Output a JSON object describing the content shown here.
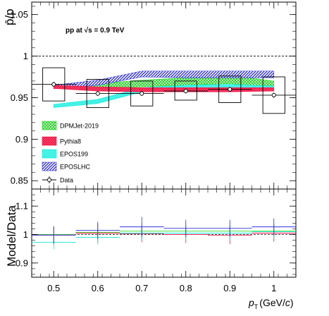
{
  "chart_data": [
    {
      "type": "line",
      "panel": "ratio",
      "ylabel": "p̄/p",
      "ylim": [
        0.84,
        1.065
      ],
      "xlim": [
        0.45,
        1.05
      ],
      "yticks": [
        0.85,
        0.9,
        0.95,
        1,
        1.05
      ],
      "ytick_labels": [
        "0.85",
        "0.9",
        "0.95",
        "1",
        "1.05"
      ],
      "annotation": "pp at √s = 0.9 TeV",
      "reference_line": 1.0,
      "legend_position": "lower-left",
      "data": {
        "name": "Data",
        "x": [
          0.5,
          0.6,
          0.7,
          0.8,
          0.9,
          1.0
        ],
        "y": [
          0.966,
          0.955,
          0.955,
          0.958,
          0.96,
          0.953
        ],
        "xerr_stat": [
          0.05,
          0.05,
          0.05,
          0.05,
          0.05,
          0.05
        ],
        "yerr_stat": [
          0.003,
          0.003,
          0.003,
          0.003,
          0.003,
          0.003
        ],
        "syst": [
          {
            "x": 0.5,
            "lo": 0.946,
            "hi": 0.986,
            "halfwidth": 0.025
          },
          {
            "x": 0.6,
            "lo": 0.938,
            "hi": 0.972,
            "halfwidth": 0.025
          },
          {
            "x": 0.7,
            "lo": 0.94,
            "hi": 0.97,
            "halfwidth": 0.025
          },
          {
            "x": 0.8,
            "lo": 0.947,
            "hi": 0.97,
            "halfwidth": 0.025
          },
          {
            "x": 0.9,
            "lo": 0.944,
            "hi": 0.976,
            "halfwidth": 0.025
          },
          {
            "x": 1.0,
            "lo": 0.931,
            "hi": 0.975,
            "halfwidth": 0.025
          }
        ]
      },
      "series": [
        {
          "name": "DPMJet-2019",
          "x": [
            0.5,
            0.6,
            0.7,
            0.8,
            0.9,
            1.0
          ],
          "lo": [
            0.962,
            0.961,
            0.963,
            0.965,
            0.967,
            0.962
          ],
          "hi": [
            0.966,
            0.967,
            0.971,
            0.974,
            0.977,
            0.97
          ]
        },
        {
          "name": "Pythia8",
          "x": [
            0.5,
            0.6,
            0.7,
            0.8,
            0.9,
            1.0
          ],
          "lo": [
            0.961,
            0.958,
            0.957,
            0.957,
            0.957,
            0.958
          ],
          "hi": [
            0.965,
            0.963,
            0.962,
            0.962,
            0.962,
            0.962
          ]
        },
        {
          "name": "EPOS199",
          "x": [
            0.5,
            0.6,
            0.7,
            0.8,
            0.9,
            1.0
          ],
          "lo": [
            0.938,
            0.943,
            0.957,
            0.96,
            0.962,
            0.96
          ],
          "hi": [
            0.942,
            0.948,
            0.962,
            0.965,
            0.966,
            0.964
          ]
        },
        {
          "name": "EPOSLHC",
          "x": [
            0.5,
            0.6,
            0.7,
            0.8,
            0.9,
            1.0
          ],
          "lo": [
            0.961,
            0.965,
            0.975,
            0.974,
            0.974,
            0.974
          ],
          "hi": [
            0.965,
            0.971,
            0.982,
            0.982,
            0.982,
            0.982
          ]
        }
      ]
    },
    {
      "type": "line",
      "panel": "model-over-data",
      "ylabel": "Model/Data",
      "xlabel": "p_T (GeV/c)",
      "xlabel_main": "p",
      "xlabel_sub": "T",
      "xlabel_unit": "(GeV/",
      "xlabel_unit_italic": "c",
      "xlabel_close": ")",
      "ylim": [
        0.85,
        1.16
      ],
      "xlim": [
        0.45,
        1.05
      ],
      "yticks": [
        0.9,
        1,
        1.1
      ],
      "ytick_labels": [
        "0.9",
        "1",
        "1.1"
      ],
      "xticks": [
        0.5,
        0.6,
        0.7,
        0.8,
        0.9,
        1.0
      ],
      "xtick_labels": [
        "0.5",
        "0.6",
        "0.7",
        "0.8",
        "0.9",
        "1"
      ],
      "reference_line": 1.0,
      "series": [
        {
          "name": "DPMJet-2019",
          "x": [
            0.5,
            0.6,
            0.7,
            0.8,
            0.9,
            1.0
          ],
          "y": [
            1.0,
            1.008,
            1.012,
            1.012,
            1.012,
            1.012
          ],
          "err": [
            0.03,
            0.03,
            0.03,
            0.03,
            0.03,
            0.03
          ]
        },
        {
          "name": "Pythia8",
          "x": [
            0.5,
            0.6,
            0.7,
            0.8,
            0.9,
            1.0
          ],
          "y": [
            0.998,
            1.005,
            1.003,
            1.0,
            0.998,
            1.005
          ],
          "err": [
            0.03,
            0.035,
            0.03,
            0.03,
            0.032,
            0.03
          ]
        },
        {
          "name": "EPOS199",
          "x": [
            0.5,
            0.6,
            0.7,
            0.8,
            0.9,
            1.0
          ],
          "y": [
            0.973,
            0.99,
            1.005,
            1.005,
            1.005,
            1.01
          ],
          "err": [
            0.025,
            0.025,
            0.025,
            0.025,
            0.025,
            0.025
          ]
        },
        {
          "name": "EPOSLHC",
          "x": [
            0.5,
            0.6,
            0.7,
            0.8,
            0.9,
            1.0
          ],
          "y": [
            0.998,
            1.015,
            1.027,
            1.022,
            1.022,
            1.027
          ],
          "err": [
            0.03,
            0.03,
            0.035,
            0.03,
            0.03,
            0.03
          ]
        }
      ]
    }
  ],
  "legend": [
    {
      "name": "DPMJet-2019",
      "color": "#22dd22",
      "style": "band"
    },
    {
      "name": "Pythia8",
      "color": "#ee1144",
      "style": "band"
    },
    {
      "name": "EPOS199",
      "color": "#11e6d8",
      "style": "band"
    },
    {
      "name": "EPOSLHC",
      "color": "#3333dd",
      "style": "band"
    },
    {
      "name": "Data",
      "color": "#000000",
      "style": "marker"
    }
  ],
  "colors": {
    "DPMJet-2019": "#22dd22",
    "Pythia8": "#ee1144",
    "EPOS199": "#11e6d8",
    "EPOSLHC": "#3333dd",
    "Data": "#000000"
  }
}
